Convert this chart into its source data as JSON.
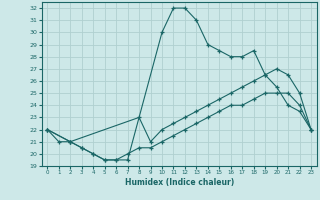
{
  "xlabel": "Humidex (Indice chaleur)",
  "xlim": [
    -0.5,
    23.5
  ],
  "ylim": [
    19,
    32.5
  ],
  "xticks": [
    0,
    1,
    2,
    3,
    4,
    5,
    6,
    7,
    8,
    9,
    10,
    11,
    12,
    13,
    14,
    15,
    16,
    17,
    18,
    19,
    20,
    21,
    22,
    23
  ],
  "yticks": [
    19,
    20,
    21,
    22,
    23,
    24,
    25,
    26,
    27,
    28,
    29,
    30,
    31,
    32
  ],
  "bg_color": "#cde8e8",
  "grid_color": "#b0d0d0",
  "line_color": "#1a6666",
  "lines": [
    {
      "x": [
        0,
        1,
        2,
        3,
        4,
        5,
        6,
        7,
        10,
        11,
        12,
        13,
        14,
        15,
        16,
        17,
        18,
        19,
        20,
        21,
        22,
        23
      ],
      "y": [
        22,
        21,
        21,
        20.5,
        20,
        19.5,
        19.5,
        19.5,
        30,
        32,
        32,
        31,
        29,
        28.5,
        28,
        28,
        28.5,
        26.5,
        25.5,
        24,
        23.5,
        22
      ]
    },
    {
      "x": [
        0,
        2,
        8,
        9,
        10,
        11,
        12,
        13,
        14,
        15,
        16,
        17,
        18,
        19,
        20,
        21,
        22,
        23
      ],
      "y": [
        22,
        21,
        23,
        21,
        22,
        22.5,
        23,
        23.5,
        24,
        24.5,
        25,
        25.5,
        26,
        26.5,
        27,
        26.5,
        25,
        22
      ]
    },
    {
      "x": [
        0,
        2,
        3,
        4,
        5,
        6,
        7,
        8,
        9,
        10,
        11,
        12,
        13,
        14,
        15,
        16,
        17,
        18,
        19,
        20,
        21,
        22,
        23
      ],
      "y": [
        22,
        21,
        20.5,
        20,
        19.5,
        19.5,
        20,
        20.5,
        20.5,
        21,
        21.5,
        22,
        22.5,
        23,
        23.5,
        24,
        24,
        24.5,
        25,
        25,
        25,
        24,
        22
      ]
    }
  ]
}
